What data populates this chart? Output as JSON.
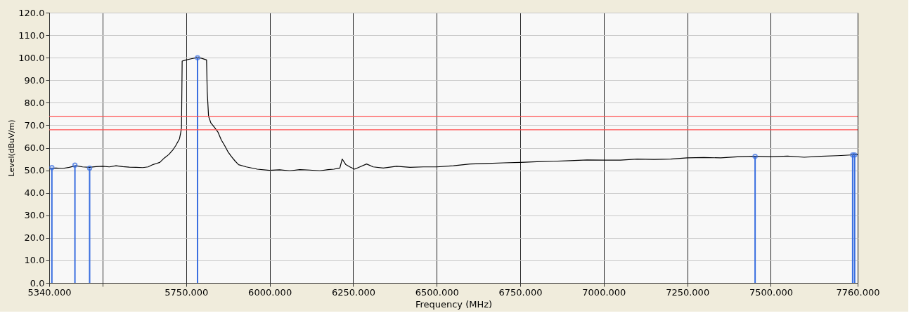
{
  "chart_data": {
    "type": "line",
    "xlabel": "Frequency (MHz)",
    "ylabel": "Level(dBuV/m)",
    "xlim": [
      5340,
      7760
    ],
    "ylim": [
      0,
      120
    ],
    "xticks": [
      {
        "value": 5340,
        "label": "5340.000"
      },
      {
        "value": 5500,
        "label": null
      },
      {
        "value": 5750,
        "label": "5750.000"
      },
      {
        "value": 6000,
        "label": "6000.000"
      },
      {
        "value": 6250,
        "label": "6250.000"
      },
      {
        "value": 6500,
        "label": "6500.000"
      },
      {
        "value": 6750,
        "label": "6750.000"
      },
      {
        "value": 7000,
        "label": "7000.000"
      },
      {
        "value": 7250,
        "label": "7250.000"
      },
      {
        "value": 7500,
        "label": "7500.000"
      },
      {
        "value": 7760,
        "label": "7760.000"
      }
    ],
    "yticks": [
      {
        "value": 0,
        "label": "0.0"
      },
      {
        "value": 10,
        "label": "10.0"
      },
      {
        "value": 20,
        "label": "20.0"
      },
      {
        "value": 30,
        "label": "30.0"
      },
      {
        "value": 40,
        "label": "40.0"
      },
      {
        "value": 50,
        "label": "50.0"
      },
      {
        "value": 60,
        "label": "60.0"
      },
      {
        "value": 70,
        "label": "70.0"
      },
      {
        "value": 80,
        "label": "80.0"
      },
      {
        "value": 90,
        "label": "90.0"
      },
      {
        "value": 100,
        "label": "100.0"
      },
      {
        "value": 110,
        "label": "110.0"
      },
      {
        "value": 120,
        "label": "120.0"
      }
    ],
    "grid": true,
    "marker": "none",
    "line_style": "solid",
    "ref_lines": [
      {
        "axis": "y",
        "value": 74,
        "color": "#ff5050"
      },
      {
        "axis": "y",
        "value": 68,
        "color": "#ff5050"
      }
    ],
    "series": [
      {
        "color": "#000000",
        "x": [
          5340,
          5360,
          5380,
          5400,
          5420,
          5440,
          5460,
          5480,
          5500,
          5520,
          5540,
          5560,
          5580,
          5600,
          5620,
          5636,
          5650,
          5660,
          5671,
          5685,
          5698,
          5710,
          5719,
          5730,
          5734,
          5736,
          5738,
          5750,
          5765,
          5782,
          5795,
          5811,
          5813,
          5817,
          5824,
          5835,
          5845,
          5855,
          5865,
          5876,
          5886,
          5897,
          5907,
          5930,
          5963,
          5999,
          6030,
          6060,
          6090,
          6120,
          6150,
          6175,
          6192,
          6210,
          6217,
          6228,
          6240,
          6254,
          6270,
          6290,
          6310,
          6340,
          6380,
          6420,
          6460,
          6500,
          6550,
          6600,
          6650,
          6700,
          6750,
          6800,
          6850,
          6900,
          6950,
          7000,
          7050,
          7100,
          7150,
          7200,
          7250,
          7300,
          7350,
          7400,
          7450,
          7500,
          7550,
          7600,
          7650,
          7700,
          7740,
          7760
        ],
        "values": [
          50.8,
          51.0,
          50.8,
          51.3,
          52.0,
          51.5,
          51.3,
          51.6,
          51.8,
          51.5,
          52.0,
          51.6,
          51.4,
          51.3,
          51.2,
          51.5,
          52.5,
          53.0,
          53.5,
          55.5,
          57.0,
          59.0,
          61.0,
          64.0,
          67.0,
          69.0,
          98.5,
          99.0,
          99.5,
          100.0,
          99.8,
          99.0,
          85.0,
          74.0,
          71.0,
          69.0,
          67.0,
          63.5,
          61.0,
          58.0,
          56.0,
          54.0,
          52.5,
          51.5,
          50.5,
          50.0,
          50.2,
          49.8,
          50.3,
          50.1,
          49.8,
          50.3,
          50.5,
          51.0,
          55.0,
          52.5,
          51.5,
          50.5,
          51.5,
          52.8,
          51.5,
          51.0,
          51.8,
          51.3,
          51.5,
          51.5,
          52.0,
          52.8,
          53.0,
          53.3,
          53.5,
          53.8,
          54.0,
          54.3,
          54.6,
          54.5,
          54.5,
          55.0,
          54.8,
          55.0,
          55.5,
          55.7,
          55.5,
          56.0,
          56.2,
          56.0,
          56.3,
          55.8,
          56.2,
          56.5,
          56.8,
          57.0
        ]
      },
      {
        "type": "lollipop",
        "color": "#3a6fe0",
        "x": [
          5348,
          5417,
          5461,
          5784,
          7453,
          7745,
          7751
        ],
        "values": [
          51.2,
          52.3,
          51.0,
          100.0,
          56.2,
          56.8,
          56.8
        ]
      }
    ]
  }
}
